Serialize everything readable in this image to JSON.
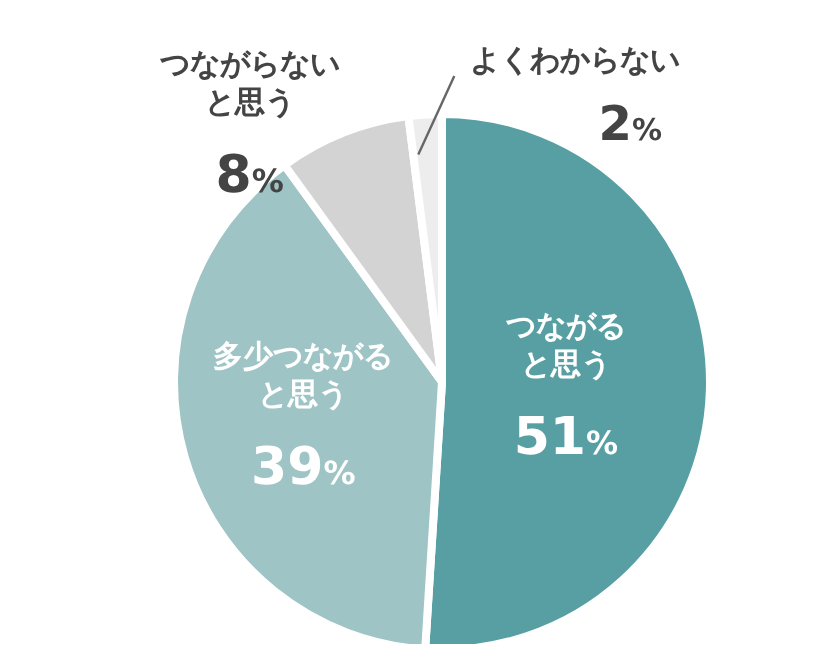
{
  "chart_data": {
    "type": "pie",
    "categories": [
      "つながると思う",
      "多少つながると思う",
      "つながらないと思う",
      "よくわからない"
    ],
    "values": [
      51,
      39,
      8,
      2
    ],
    "colors": [
      "#579fa3",
      "#9fc4c5",
      "#d3d3d3",
      "#ededed"
    ],
    "value_labels": [
      "51%",
      "39%",
      "8%",
      "2%"
    ],
    "legend": false
  }
}
